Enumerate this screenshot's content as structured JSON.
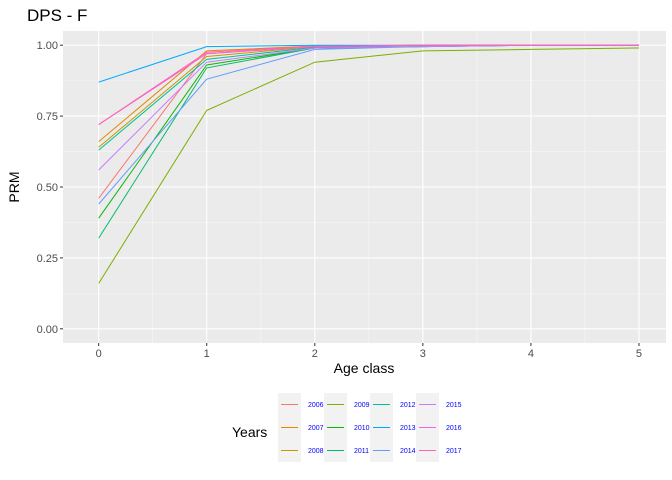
{
  "chart_data": {
    "type": "line",
    "title": "DPS - F",
    "xlabel": "Age class",
    "ylabel": "PRM",
    "x": [
      0,
      1,
      2,
      3,
      4,
      5
    ],
    "x_ticks": [
      "0",
      "1",
      "2",
      "3",
      "4",
      "5"
    ],
    "y_ticks": [
      "0.00",
      "0.25",
      "0.50",
      "0.75",
      "1.00"
    ],
    "xlim": [
      -0.33,
      5.25
    ],
    "ylim": [
      -0.05,
      1.05
    ],
    "grid": true,
    "legend": {
      "title": "Years",
      "position": "bottom",
      "columns": 4
    },
    "series": [
      {
        "name": "2006",
        "color": "#F8766D",
        "values": [
          0.46,
          0.97,
          0.995,
          1.0,
          1.0,
          1.0
        ]
      },
      {
        "name": "2007",
        "color": "#E58700",
        "values": [
          0.66,
          0.98,
          0.997,
          1.0,
          1.0,
          1.0
        ]
      },
      {
        "name": "2008",
        "color": "#C99800",
        "values": [
          0.64,
          0.96,
          0.995,
          1.0,
          1.0,
          1.0
        ]
      },
      {
        "name": "2009",
        "color": "#7CAE00",
        "values": [
          0.16,
          0.77,
          0.94,
          0.98,
          0.985,
          0.99
        ]
      },
      {
        "name": "2010",
        "color": "#0CB702",
        "values": [
          0.39,
          0.93,
          0.99,
          0.995,
          1.0,
          1.0
        ]
      },
      {
        "name": "2011",
        "color": "#00BE67",
        "values": [
          0.32,
          0.92,
          0.99,
          0.995,
          1.0,
          1.0
        ]
      },
      {
        "name": "2012",
        "color": "#00C19A",
        "values": [
          0.63,
          0.95,
          0.993,
          1.0,
          1.0,
          1.0
        ]
      },
      {
        "name": "2013",
        "color": "#00A9FF",
        "values": [
          0.87,
          0.995,
          1.0,
          1.0,
          1.0,
          1.0
        ]
      },
      {
        "name": "2014",
        "color": "#619CFF",
        "values": [
          0.44,
          0.88,
          0.985,
          0.995,
          1.0,
          1.0
        ]
      },
      {
        "name": "2015",
        "color": "#C77CFF",
        "values": [
          0.56,
          0.94,
          0.99,
          0.995,
          1.0,
          1.0
        ]
      },
      {
        "name": "2016",
        "color": "#F564E3",
        "values": [
          0.72,
          0.97,
          0.995,
          1.0,
          1.0,
          1.0
        ]
      },
      {
        "name": "2017",
        "color": "#FF64B0",
        "values": [
          0.72,
          0.975,
          0.996,
          1.0,
          1.0,
          1.0
        ]
      }
    ]
  }
}
